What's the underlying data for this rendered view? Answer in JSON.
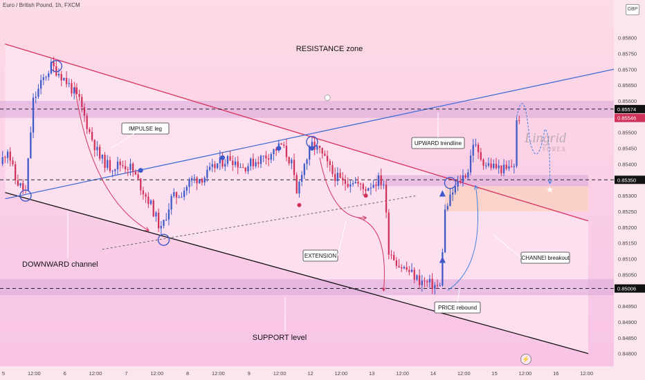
{
  "header": {
    "title": "Euro / British Pound, 1h, FXCM",
    "currency": "GBP"
  },
  "logo": {
    "line1": "Lingrid",
    "line2": "FOREX",
    "flash_icon": "lightning-icon"
  },
  "colors": {
    "background_top": "#fddbe7",
    "background_bottom": "#f8c3e6",
    "up_candle": "#3f59c8",
    "down_candle": "#d2325a",
    "channel_fill": "#fde6f2",
    "zone_fill": "#d9a6d9",
    "rising_line": "#3f6cd6",
    "falling_line": "#d8305c",
    "support_line": "#111111",
    "entry_box": "#fbd2c6",
    "projection": "#3f80e0"
  },
  "chart_data": {
    "type": "candlestick",
    "pair": "EUR/GBP",
    "timeframe": "1h",
    "ylim": [
      0.8476,
      0.8588
    ],
    "y_ticks": [
      "0.85800",
      "0.85750",
      "0.85700",
      "0.85650",
      "0.85600",
      "0.85500",
      "0.85450",
      "0.85400",
      "0.85300",
      "0.85250",
      "0.85200",
      "0.85150",
      "0.85100",
      "0.85050",
      "0.84950",
      "0.84900",
      "0.84850",
      "0.84800"
    ],
    "price_labels": [
      {
        "text": "0.85574",
        "value": 0.85574,
        "color": "#111111"
      },
      {
        "text": "0.85546",
        "value": 0.85546,
        "color": "#d2325a"
      },
      {
        "text": "0.85350",
        "value": 0.8535,
        "color": "#111111"
      },
      {
        "text": "0.85006",
        "value": 0.85006,
        "color": "#111111"
      }
    ],
    "x_ticks": [
      {
        "label": "5",
        "x": 0
      },
      {
        "label": "12:00",
        "x": 12
      },
      {
        "label": "6",
        "x": 24
      },
      {
        "label": "12:00",
        "x": 36
      },
      {
        "label": "7",
        "x": 48
      },
      {
        "label": "12:00",
        "x": 60
      },
      {
        "label": "8",
        "x": 72
      },
      {
        "label": "12:00",
        "x": 84
      },
      {
        "label": "9",
        "x": 96
      },
      {
        "label": "12:00",
        "x": 108
      },
      {
        "label": "12",
        "x": 120
      },
      {
        "label": "12:00",
        "x": 132
      },
      {
        "label": "13",
        "x": 144
      },
      {
        "label": "12:00",
        "x": 156
      },
      {
        "label": "14",
        "x": 168
      },
      {
        "label": "12:00",
        "x": 180
      },
      {
        "label": "15",
        "x": 192
      },
      {
        "label": "12:00",
        "x": 204
      },
      {
        "label": "16",
        "x": 216
      },
      {
        "label": "12:00",
        "x": 228
      }
    ],
    "x_max": 240,
    "path": [
      [
        0,
        0.854
      ],
      [
        3,
        0.8545
      ],
      [
        6,
        0.8535
      ],
      [
        10,
        0.8531
      ],
      [
        13,
        0.856
      ],
      [
        17,
        0.8567
      ],
      [
        20,
        0.8571
      ],
      [
        23,
        0.8569
      ],
      [
        27,
        0.8565
      ],
      [
        31,
        0.856
      ],
      [
        35,
        0.855
      ],
      [
        39,
        0.8542
      ],
      [
        43,
        0.8539
      ],
      [
        47,
        0.854
      ],
      [
        51,
        0.8539
      ],
      [
        55,
        0.8533
      ],
      [
        59,
        0.8527
      ],
      [
        63,
        0.8519
      ],
      [
        67,
        0.8529
      ],
      [
        71,
        0.8531
      ],
      [
        75,
        0.8535
      ],
      [
        80,
        0.8536
      ],
      [
        85,
        0.854
      ],
      [
        90,
        0.8542
      ],
      [
        95,
        0.8539
      ],
      [
        100,
        0.8541
      ],
      [
        105,
        0.8543
      ],
      [
        110,
        0.8546
      ],
      [
        114,
        0.854
      ],
      [
        116,
        0.853
      ],
      [
        118,
        0.8538
      ],
      [
        122,
        0.8546
      ],
      [
        125,
        0.8544
      ],
      [
        130,
        0.8537
      ],
      [
        134,
        0.8534
      ],
      [
        138,
        0.8535
      ],
      [
        142,
        0.8532
      ],
      [
        146,
        0.8534
      ],
      [
        148,
        0.8535
      ],
      [
        150,
        0.8534
      ],
      [
        152,
        0.8513
      ],
      [
        156,
        0.8508
      ],
      [
        160,
        0.8506
      ],
      [
        164,
        0.8503
      ],
      [
        168,
        0.8502
      ],
      [
        172,
        0.8501
      ],
      [
        174,
        0.8525
      ],
      [
        177,
        0.8531
      ],
      [
        180,
        0.8535
      ],
      [
        183,
        0.8538
      ],
      [
        185,
        0.8547
      ],
      [
        187,
        0.8543
      ],
      [
        190,
        0.854
      ],
      [
        194,
        0.8539
      ],
      [
        198,
        0.8538
      ],
      [
        201,
        0.854
      ],
      [
        202,
        0.8553
      ],
      [
        203,
        0.8555
      ]
    ],
    "zones": [
      {
        "name": "resistance-band",
        "from": 0.85546,
        "to": 0.856
      },
      {
        "name": "support-band",
        "from": 0.84985,
        "to": 0.85035
      },
      {
        "name": "breakout-band",
        "from": 0.8533,
        "to": 0.85365,
        "x_from": 147,
        "x_to": 230
      }
    ],
    "lines": [
      {
        "name": "downward-channel-top",
        "p1": [
          2,
          0.8578
        ],
        "p2": [
          230,
          0.8522
        ]
      },
      {
        "name": "downward-channel-bottom",
        "p1": [
          2,
          0.8531
        ],
        "p2": [
          230,
          0.848
        ]
      },
      {
        "name": "upward-trendline",
        "p1": [
          2,
          0.8529
        ],
        "p2": [
          240,
          0.857
        ]
      },
      {
        "name": "inner-channel-dashed",
        "p1": [
          40,
          0.8513
        ],
        "p2": [
          163,
          0.853
        ]
      }
    ],
    "annotations": {
      "resistance": "RESISTANCE zone",
      "impulse": "IMPULSE leg",
      "upward": "UPWARD trendline",
      "downward": "DOWNWARD channel",
      "extension": "EXTENSION",
      "channel_breakout": "CHANNEl breakout",
      "price_rebound": "PRICE rebound",
      "support": "SUPPORT level"
    },
    "grid": false
  }
}
